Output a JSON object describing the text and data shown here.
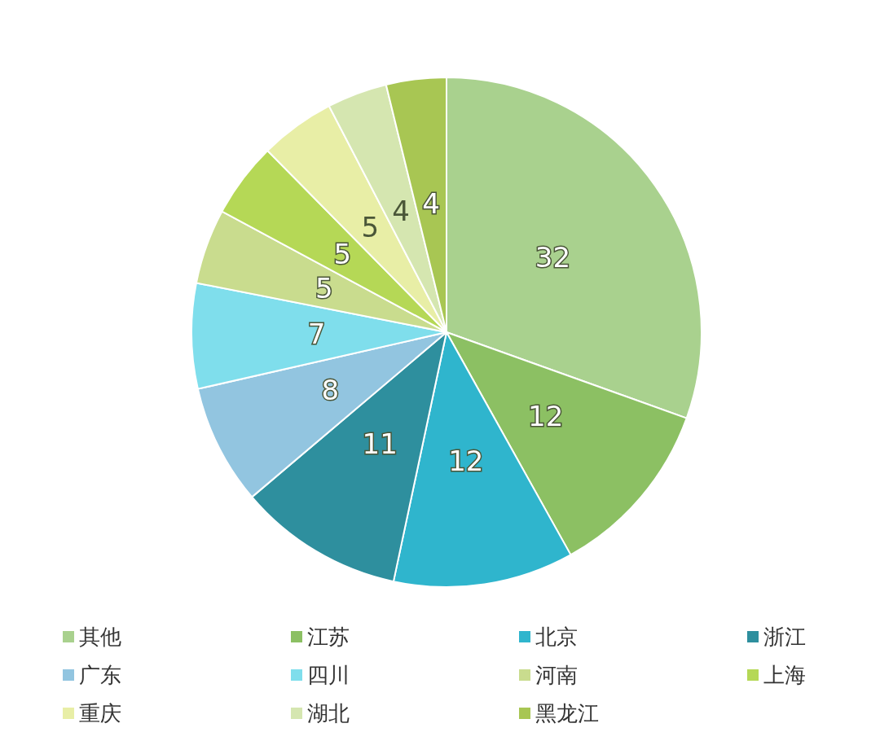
{
  "chart_data": {
    "type": "pie",
    "categories": [
      "其他",
      "江苏",
      "北京",
      "浙江",
      "广东",
      "四川",
      "河南",
      "上海",
      "重庆",
      "湖北",
      "黑龙江"
    ],
    "values": [
      32,
      12,
      12,
      11,
      8,
      7,
      5,
      5,
      5,
      4,
      4
    ],
    "colors": [
      "#a9d18e",
      "#8cc063",
      "#2fb5cd",
      "#2e8f9e",
      "#92c5e0",
      "#7fdeec",
      "#c9dc8e",
      "#b5d856",
      "#e8eea6",
      "#d5e6b0",
      "#a8c653"
    ],
    "data_labels": true,
    "legend": "bottom"
  }
}
